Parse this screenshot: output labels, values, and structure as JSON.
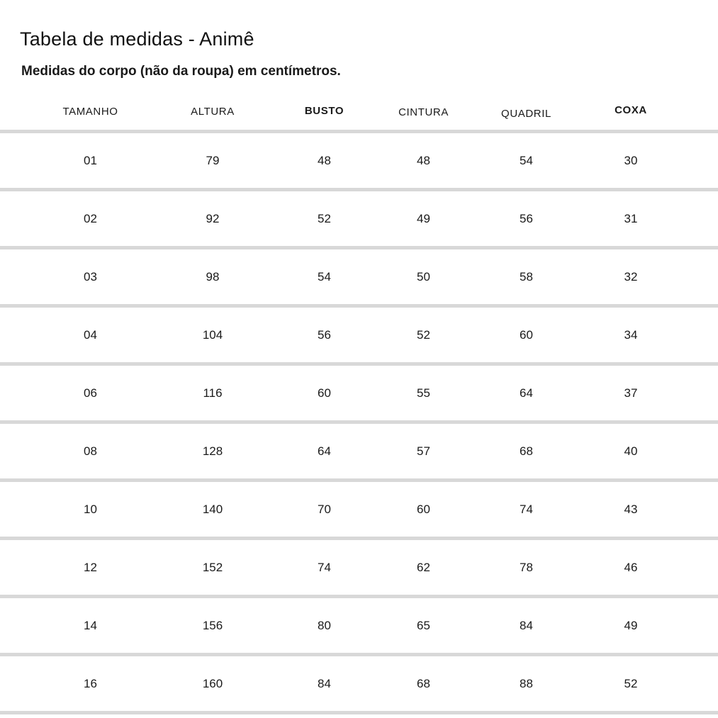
{
  "chart_data": {
    "type": "table",
    "title": "Tabela de medidas - Animê",
    "subtitle": "Medidas do corpo (não da roupa) em centímetros.",
    "columns": [
      "TAMANHO",
      "ALTURA",
      "BUSTO",
      "CINTURA",
      "QUADRIL",
      "COXA"
    ],
    "emphasized_columns": [
      "BUSTO",
      "COXA"
    ],
    "rows": [
      [
        "01",
        79,
        48,
        48,
        54,
        30
      ],
      [
        "02",
        92,
        52,
        49,
        56,
        31
      ],
      [
        "03",
        98,
        54,
        50,
        58,
        32
      ],
      [
        "04",
        104,
        56,
        52,
        60,
        34
      ],
      [
        "06",
        116,
        60,
        55,
        64,
        37
      ],
      [
        "08",
        128,
        64,
        57,
        68,
        40
      ],
      [
        "10",
        140,
        70,
        60,
        74,
        43
      ],
      [
        "12",
        152,
        74,
        62,
        78,
        46
      ],
      [
        "14",
        156,
        80,
        65,
        84,
        49
      ],
      [
        "16",
        160,
        84,
        68,
        88,
        52
      ]
    ]
  },
  "colors": {
    "text": "#1a1a1a",
    "divider": "#d8d8d8",
    "background": "#ffffff"
  }
}
